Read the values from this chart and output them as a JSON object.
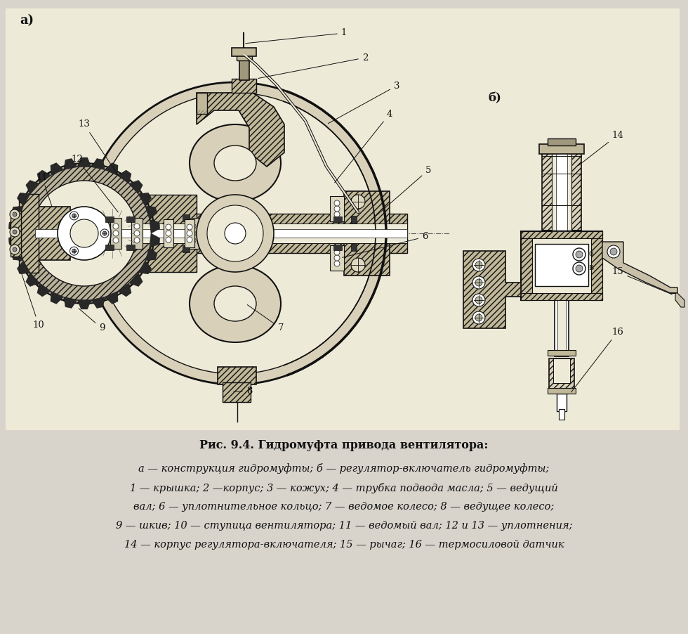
{
  "bg_color": "#d8d4cc",
  "diagram_bg": "#e8e4dc",
  "hatch_color": "#333333",
  "line_color": "#111111",
  "metal_fill": "#c0b898",
  "title_line1": "Рис. 9.4. Гидромуфта привода вентилятора:",
  "caption_line2": "а — конструкция гидромуфты; б — регулятор-включатель гидромуфты;",
  "caption_line3": "1 — крышка; 2 —корпус; 3 — кожух; 4 — трубка подвода масла; 5 — ведущий",
  "caption_line4": "вал; 6 — уплотнительное кольцо; 7 — ведомое колесо; 8 — ведущее колесо;",
  "caption_line5": "9 — шкив; 10 — ступица вентилятора; 11 — ведомый вал; 12 и 13 — уплотнения;",
  "caption_line6": "14 — корпус регулятора-включателя; 15 — рычаг; 16 — термосиловой датчик",
  "label_a": "а)",
  "label_b": "б)"
}
